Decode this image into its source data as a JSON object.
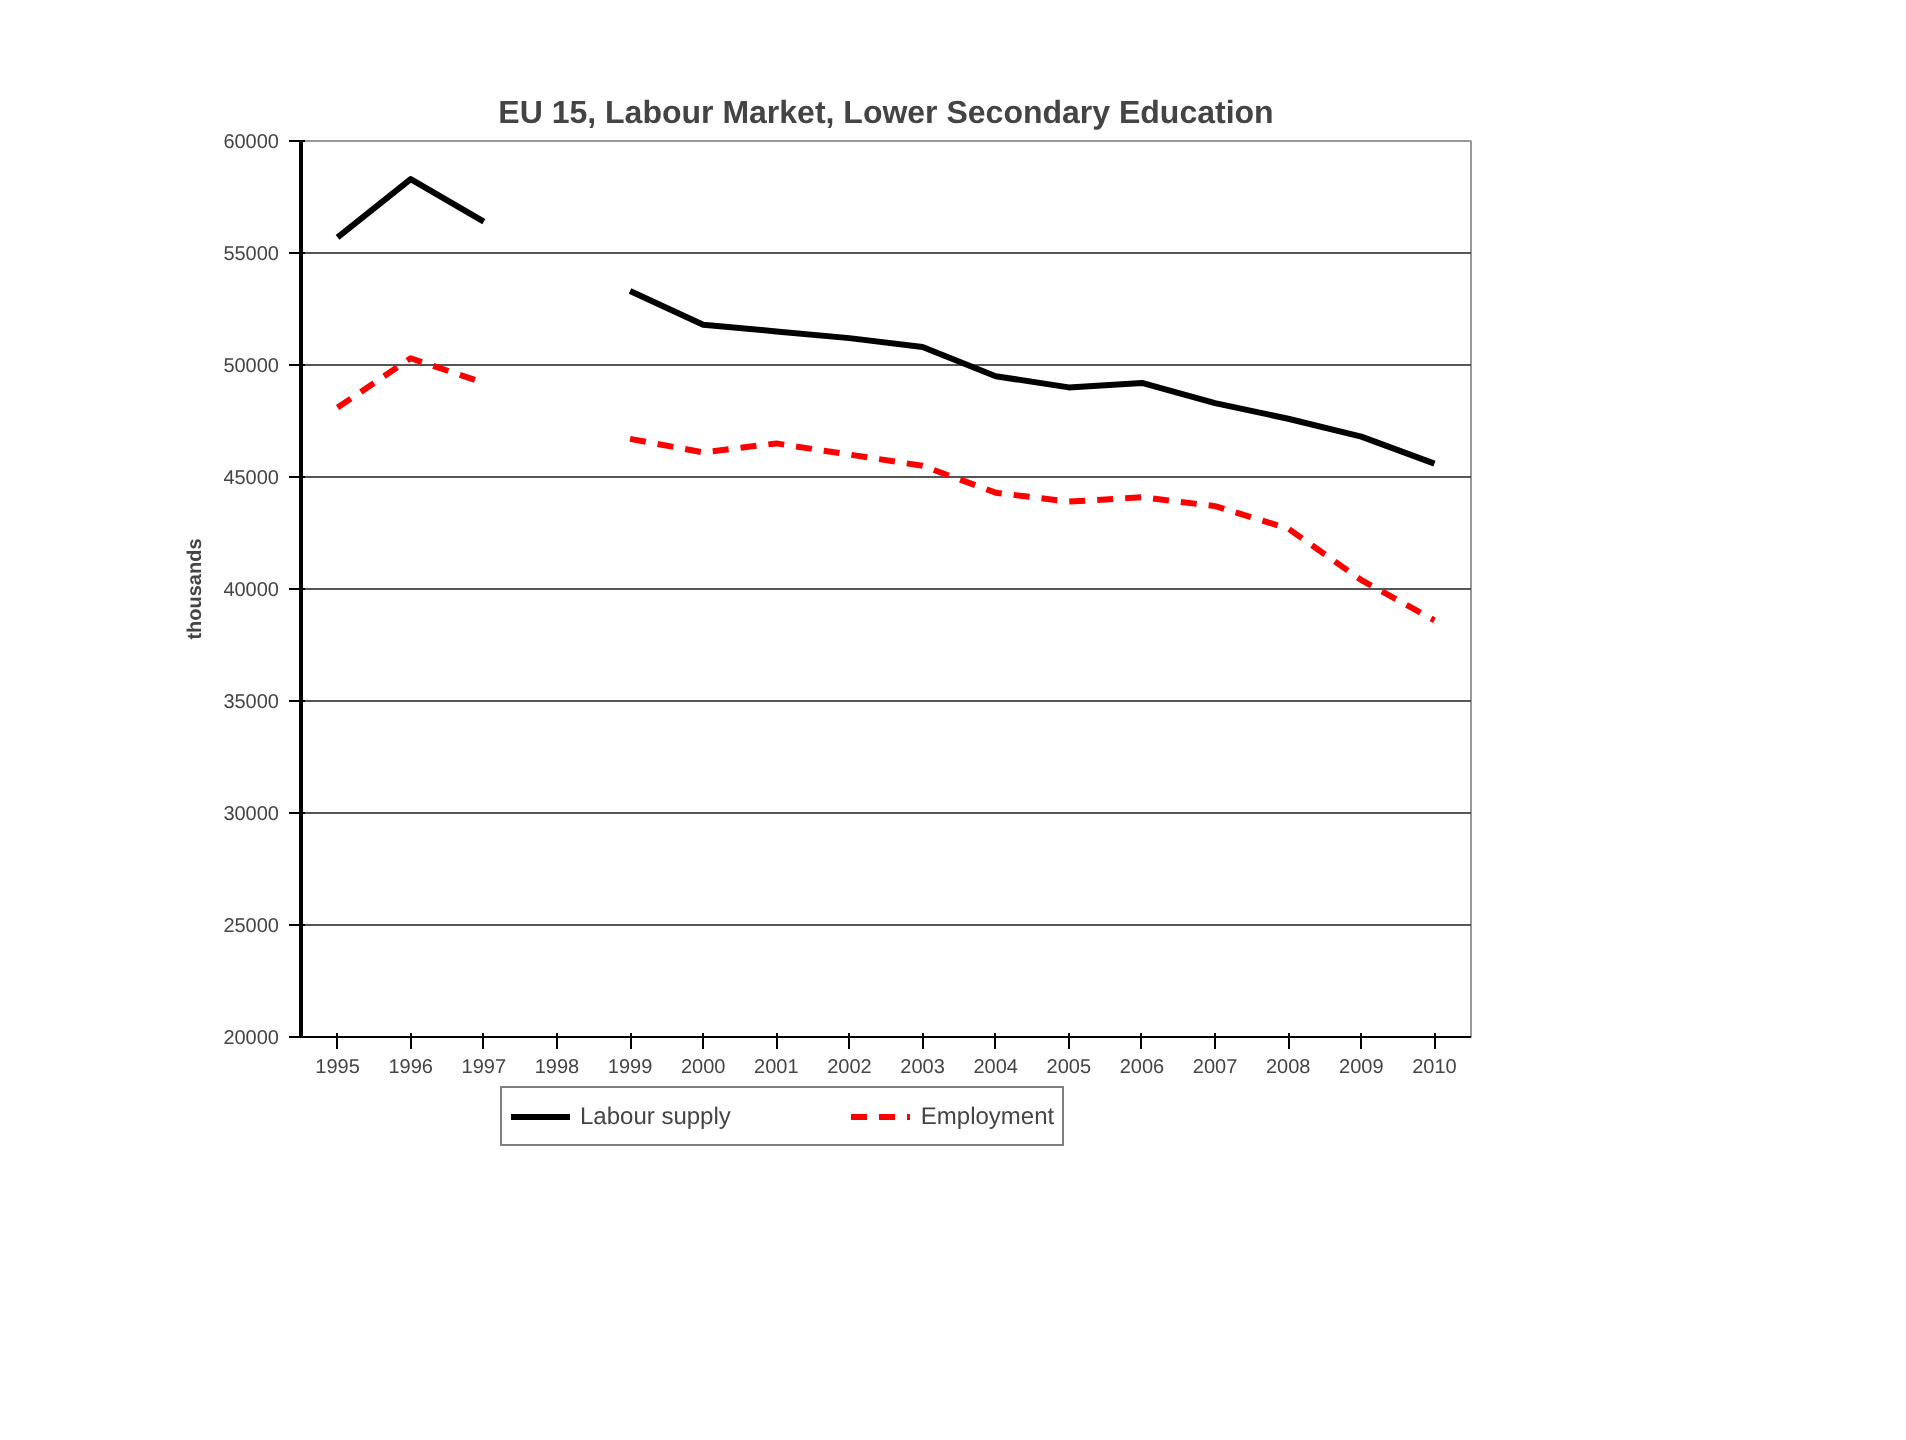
{
  "chart_data": {
    "type": "line",
    "title": "EU 15, Labour Market, Lower Secondary Education",
    "ylabel": "thousands",
    "categories": [
      "1995",
      "1996",
      "1997",
      "1998",
      "1999",
      "2000",
      "2001",
      "2002",
      "2003",
      "2004",
      "2005",
      "2006",
      "2007",
      "2008",
      "2009",
      "2010"
    ],
    "series": [
      {
        "name": "Labour supply",
        "color": "#000000",
        "line_style": "solid",
        "values": [
          55700,
          58300,
          56400,
          null,
          53300,
          51800,
          51500,
          51200,
          50800,
          49500,
          49000,
          49200,
          48300,
          47600,
          46800,
          45600
        ]
      },
      {
        "name": "Employment",
        "color": "#ff0000",
        "line_style": "dashed",
        "values": [
          48100,
          50300,
          49200,
          null,
          46700,
          46100,
          46500,
          46000,
          45500,
          44300,
          43900,
          44100,
          43700,
          42700,
          40400,
          38600
        ]
      }
    ],
    "ylim": [
      20000,
      60000
    ],
    "yticks": [
      20000,
      25000,
      30000,
      35000,
      40000,
      45000,
      50000,
      55000,
      60000
    ],
    "grid": "y",
    "legend": "bottom",
    "marker": "none"
  }
}
